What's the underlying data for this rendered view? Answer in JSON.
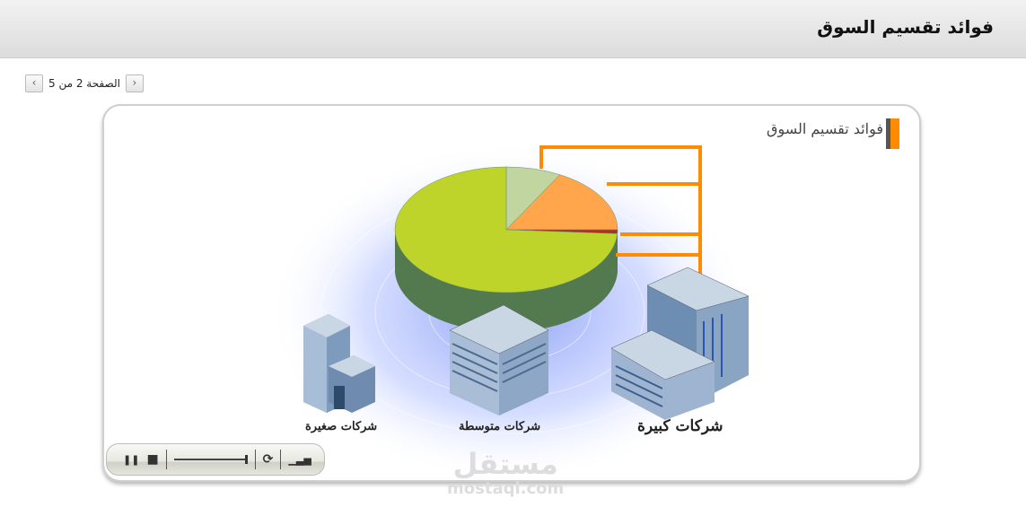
{
  "header": {
    "title": "فوائد تقسيم السوق"
  },
  "pager": {
    "text": "الصفحة 2 من 5",
    "prev_icon": "chevron-left-icon",
    "next_icon": "chevron-right-icon"
  },
  "slide": {
    "title": "فوائد تقسيم السوق",
    "pie_slices_percent": [
      {
        "color": "#c1d5a0",
        "value": 8
      },
      {
        "color": "#ffa64d",
        "value": 17
      },
      {
        "color": "#b03020",
        "value": 1
      },
      {
        "color": "#bfd42a",
        "value": 74
      }
    ],
    "labels": {
      "small": "شركات صغيرة",
      "medium": "شركات متوسطة",
      "large": "شركات كبيرة"
    },
    "accent": "#ff8c00"
  },
  "player": {
    "pause": "❚❚",
    "stop": "■",
    "replay": "⟳",
    "volume": "▁▃▅"
  },
  "watermark": {
    "arabic": "مستقل",
    "latin": "mostaql.com"
  }
}
